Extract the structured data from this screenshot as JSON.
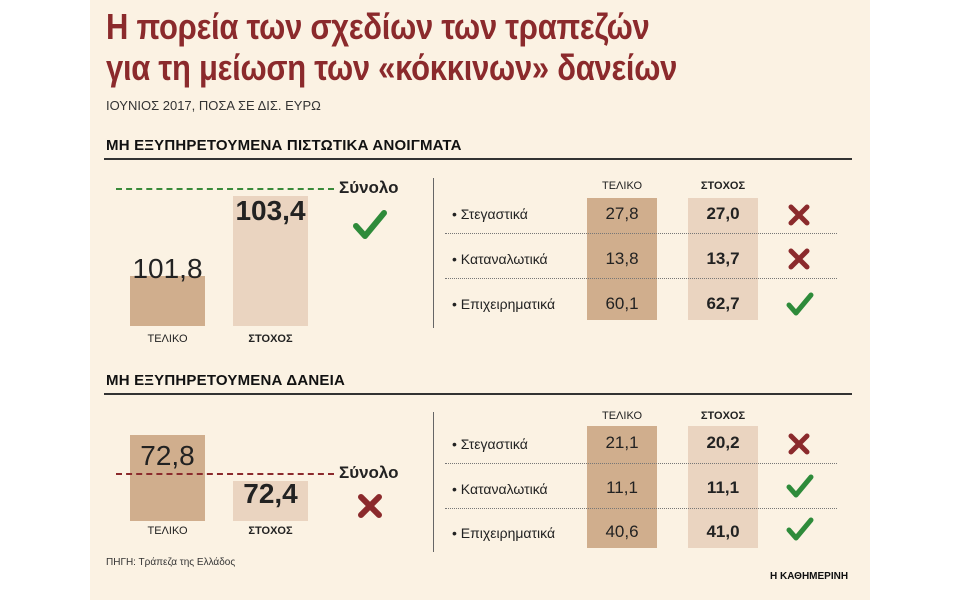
{
  "header": {
    "title_line1": "Η πορεία των σχεδίων των τραπεζών",
    "title_line2": "για τη μείωση των «κόκκινων» δανείων",
    "subtitle": "ΙΟΥΝΙΟΣ 2017, ΠΟΣΑ ΣΕ ΔΙΣ. ΕΥΡΩ"
  },
  "colors": {
    "title": "#8b2a2c",
    "final_bar": "#d0ae8d",
    "target_bar": "#ead4c0",
    "check": "#2e8b3a",
    "cross": "#8b2a2c"
  },
  "chart_data": [
    {
      "type": "bar",
      "title": "ΜΗ ΕΞΥΠΗΡΕΤΟΥΜΕΝΑ ΠΙΣΤΩΤΙΚΑ ΑΝΟΙΓΜΑΤΑ",
      "total": {
        "label": "Σύνολο",
        "final_label": "ΤΕΛΙΚΟ",
        "final_value": "101,8",
        "target_label": "ΣΤΟΧΟΣ",
        "target_value": "103,4",
        "status": "check"
      },
      "table": {
        "col_final": "ΤΕΛΙΚΟ",
        "col_target": "ΣΤΟΧΟΣ",
        "rows": [
          {
            "label": "• Στεγαστικά",
            "final": "27,8",
            "target": "27,0",
            "status": "cross"
          },
          {
            "label": "• Καταναλωτικά",
            "final": "13,8",
            "target": "13,7",
            "status": "cross"
          },
          {
            "label": "• Επιχειρηματικά",
            "final": "60,1",
            "target": "62,7",
            "status": "check"
          }
        ]
      }
    },
    {
      "type": "bar",
      "title": "ΜΗ ΕΞΥΠΗΡΕΤΟΥΜΕΝΑ ΔΑΝΕΙΑ",
      "total": {
        "label": "Σύνολο",
        "final_label": "ΤΕΛΙΚΟ",
        "final_value": "72,8",
        "target_label": "ΣΤΟΧΟΣ",
        "target_value": "72,4",
        "status": "cross"
      },
      "table": {
        "col_final": "ΤΕΛΙΚΟ",
        "col_target": "ΣΤΟΧΟΣ",
        "rows": [
          {
            "label": "• Στεγαστικά",
            "final": "21,1",
            "target": "20,2",
            "status": "cross"
          },
          {
            "label": "• Καταναλωτικά",
            "final": "11,1",
            "target": "11,1",
            "status": "check"
          },
          {
            "label": "• Επιχειρηματικά",
            "final": "40,6",
            "target": "41,0",
            "status": "check"
          }
        ]
      }
    }
  ],
  "footer": {
    "source": "ΠΗΓΗ: Τράπεζα της Ελλάδος",
    "brand": "Η ΚΑΘΗΜΕΡΙΝΗ"
  }
}
